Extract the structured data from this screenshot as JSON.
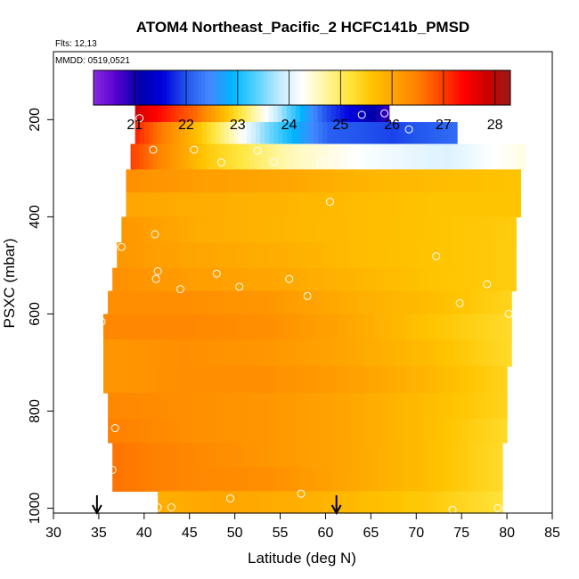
{
  "chart_data": {
    "type": "heatmap",
    "title": "ATOM4 Northeast_Pacific_2 HCFC141b_PMSD",
    "annotations": {
      "flights": "Flts: 12,13",
      "dates": "MMDD: 0519,0521"
    },
    "xlabel": "Latitude (deg N)",
    "ylabel": "PSXC (mbar)",
    "xlim": [
      30,
      85
    ],
    "ylim": [
      1010,
      60
    ],
    "x_ticks": [
      "30",
      "35",
      "40",
      "45",
      "50",
      "55",
      "60",
      "65",
      "70",
      "75",
      "80",
      "85"
    ],
    "y_ticks": [
      "200",
      "400",
      "600",
      "800",
      "1000"
    ],
    "colorbar": {
      "range": [
        20.2,
        28.3
      ],
      "ticks": [
        "21",
        "22",
        "23",
        "24",
        "25",
        "26",
        "27",
        "28"
      ],
      "colors": [
        "#8a2be2",
        "#5500cc",
        "#0000aa",
        "#0000dd",
        "#2255ee",
        "#4488ff",
        "#00b4ff",
        "#55d0ff",
        "#bfe9ff",
        "#ffffff",
        "#fff6a0",
        "#ffe640",
        "#ffc400",
        "#ffa200",
        "#ff8000",
        "#ff4400",
        "#ff0000",
        "#cc0000",
        "#9a1a1a"
      ]
    },
    "pressure_levels": [
      {
        "p": 190,
        "lat": [
          39,
          67
        ],
        "values": [
          27.8,
          26.6,
          24.4,
          22.0,
          20.8
        ]
      },
      {
        "p": 220,
        "lat": [
          39,
          74.5
        ],
        "values": [
          27.2,
          25.6,
          23.6,
          22.1,
          21.9,
          22.2
        ]
      },
      {
        "p": 280,
        "lat": [
          38.5,
          82
        ],
        "values": [
          27.0,
          25.5,
          24.6,
          24.2,
          24.0,
          24.4
        ]
      },
      {
        "p": 325,
        "lat": [
          38,
          81.5
        ],
        "values": [
          26.3,
          26.1,
          26.0,
          25.8,
          25.7,
          25.6
        ]
      },
      {
        "p": 375,
        "lat": [
          38,
          81.5
        ],
        "values": [
          26.0,
          25.9,
          25.8,
          25.7,
          25.6,
          25.6
        ]
      },
      {
        "p": 425,
        "lat": [
          37.5,
          81
        ],
        "values": [
          26.2,
          25.9,
          25.8,
          25.7,
          25.6,
          25.5
        ]
      },
      {
        "p": 480,
        "lat": [
          37,
          81
        ],
        "values": [
          26.2,
          26.0,
          25.9,
          25.7,
          25.6,
          25.5
        ]
      },
      {
        "p": 530,
        "lat": [
          36.5,
          81
        ],
        "values": [
          26.3,
          26.1,
          26.0,
          25.8,
          25.6,
          25.5
        ]
      },
      {
        "p": 575,
        "lat": [
          36,
          80.5
        ],
        "values": [
          26.3,
          26.3,
          26.2,
          25.9,
          25.7,
          25.4
        ]
      },
      {
        "p": 625,
        "lat": [
          35.5,
          80.5
        ],
        "values": [
          26.4,
          26.4,
          26.3,
          26.0,
          25.6,
          25.3
        ]
      },
      {
        "p": 680,
        "lat": [
          35.5,
          80.5
        ],
        "values": [
          26.2,
          26.3,
          26.2,
          26.0,
          25.7,
          25.3
        ]
      },
      {
        "p": 735,
        "lat": [
          35.5,
          80
        ],
        "values": [
          26.2,
          26.3,
          26.3,
          26.1,
          25.8,
          25.4
        ]
      },
      {
        "p": 790,
        "lat": [
          36,
          80
        ],
        "values": [
          26.4,
          26.3,
          26.2,
          26.0,
          25.7,
          25.4
        ]
      },
      {
        "p": 840,
        "lat": [
          36,
          80
        ],
        "values": [
          26.5,
          26.3,
          26.2,
          26.0,
          25.7,
          25.3
        ]
      },
      {
        "p": 890,
        "lat": [
          36.5,
          79.5
        ],
        "values": [
          26.6,
          26.4,
          26.2,
          26.0,
          25.7,
          25.3
        ]
      },
      {
        "p": 940,
        "lat": [
          36.5,
          79.5
        ],
        "values": [
          26.6,
          26.4,
          26.3,
          26.0,
          25.7,
          25.3
        ]
      },
      {
        "p": 990,
        "lat": [
          41.5,
          79.5
        ],
        "values": [
          25.9,
          26.0,
          25.9,
          25.7,
          25.5,
          25.2
        ]
      }
    ],
    "observations": [
      {
        "lat": 39.5,
        "p": 197
      },
      {
        "lat": 64,
        "p": 190
      },
      {
        "lat": 66.5,
        "p": 187
      },
      {
        "lat": 69.2,
        "p": 220
      },
      {
        "lat": 41,
        "p": 262
      },
      {
        "lat": 45.5,
        "p": 262
      },
      {
        "lat": 52.5,
        "p": 264
      },
      {
        "lat": 48.5,
        "p": 288
      },
      {
        "lat": 54.3,
        "p": 287
      },
      {
        "lat": 59.5,
        "p": 287
      },
      {
        "lat": 81.9,
        "p": 283
      },
      {
        "lat": 60.5,
        "p": 369
      },
      {
        "lat": 41.2,
        "p": 436
      },
      {
        "lat": 37.5,
        "p": 462
      },
      {
        "lat": 41.5,
        "p": 512
      },
      {
        "lat": 41.3,
        "p": 528
      },
      {
        "lat": 44,
        "p": 549
      },
      {
        "lat": 48,
        "p": 517
      },
      {
        "lat": 50.5,
        "p": 544
      },
      {
        "lat": 56,
        "p": 528
      },
      {
        "lat": 58,
        "p": 563
      },
      {
        "lat": 72.2,
        "p": 481
      },
      {
        "lat": 77.8,
        "p": 539
      },
      {
        "lat": 74.8,
        "p": 578
      },
      {
        "lat": 80.2,
        "p": 600
      },
      {
        "lat": 35.3,
        "p": 616
      },
      {
        "lat": 36.8,
        "p": 835
      },
      {
        "lat": 36.5,
        "p": 921
      },
      {
        "lat": 35.8,
        "p": 955
      },
      {
        "lat": 41.5,
        "p": 998
      },
      {
        "lat": 43,
        "p": 998
      },
      {
        "lat": 49.5,
        "p": 980
      },
      {
        "lat": 57.3,
        "p": 970
      },
      {
        "lat": 74,
        "p": 1003
      },
      {
        "lat": 79,
        "p": 1000
      }
    ],
    "arrows_lat": [
      34.8,
      61.2
    ]
  }
}
